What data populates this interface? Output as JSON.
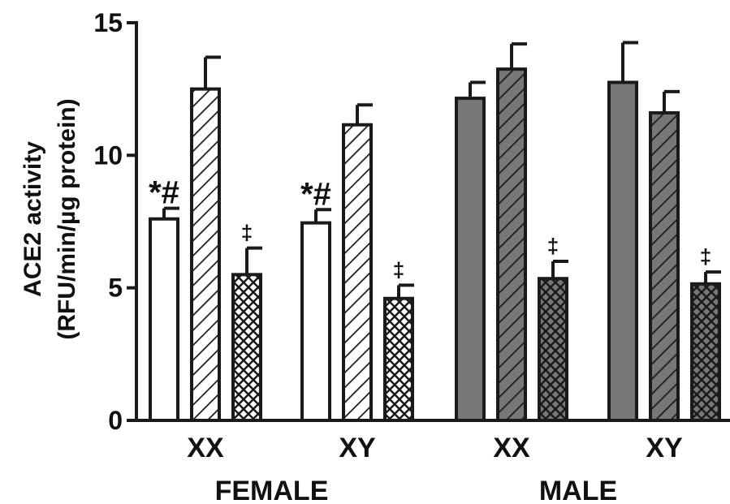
{
  "chart_data": {
    "type": "bar",
    "title": "",
    "ylabel_line1": "ACE2 activity",
    "ylabel_line2": "(RFU/min/µg protein)",
    "ylim": [
      0,
      15
    ],
    "yticks": [
      0,
      5,
      10,
      15
    ],
    "grid": false,
    "legend": "none",
    "groups": [
      {
        "label": "XX",
        "sex": "FEMALE",
        "fill": "white",
        "bars": [
          {
            "value": 7.6,
            "error": 0.4,
            "pattern": "solid",
            "annotation": "*#"
          },
          {
            "value": 12.5,
            "error": 1.2,
            "pattern": "diagonal",
            "annotation": ""
          },
          {
            "value": 5.5,
            "error": 1.0,
            "pattern": "crosshatch",
            "annotation": "‡"
          }
        ]
      },
      {
        "label": "XY",
        "sex": "FEMALE",
        "fill": "white",
        "bars": [
          {
            "value": 7.45,
            "error": 0.5,
            "pattern": "solid",
            "annotation": "*#"
          },
          {
            "value": 11.15,
            "error": 0.75,
            "pattern": "diagonal",
            "annotation": ""
          },
          {
            "value": 4.6,
            "error": 0.5,
            "pattern": "crosshatch",
            "annotation": "‡"
          }
        ]
      },
      {
        "label": "XX",
        "sex": "MALE",
        "fill": "gray",
        "bars": [
          {
            "value": 12.15,
            "error": 0.6,
            "pattern": "solid",
            "annotation": ""
          },
          {
            "value": 13.25,
            "error": 0.95,
            "pattern": "diagonal",
            "annotation": ""
          },
          {
            "value": 5.35,
            "error": 0.65,
            "pattern": "crosshatch",
            "annotation": "‡"
          }
        ]
      },
      {
        "label": "XY",
        "sex": "MALE",
        "fill": "gray",
        "bars": [
          {
            "value": 12.75,
            "error": 1.5,
            "pattern": "solid",
            "annotation": ""
          },
          {
            "value": 11.6,
            "error": 0.8,
            "pattern": "diagonal",
            "annotation": ""
          },
          {
            "value": 5.15,
            "error": 0.45,
            "pattern": "crosshatch",
            "annotation": "‡"
          }
        ]
      }
    ],
    "sex_labels": [
      "FEMALE",
      "MALE"
    ]
  },
  "colors": {
    "white_fill": "#ffffff",
    "gray_fill": "#777777",
    "stroke": "#1a1a1a"
  }
}
